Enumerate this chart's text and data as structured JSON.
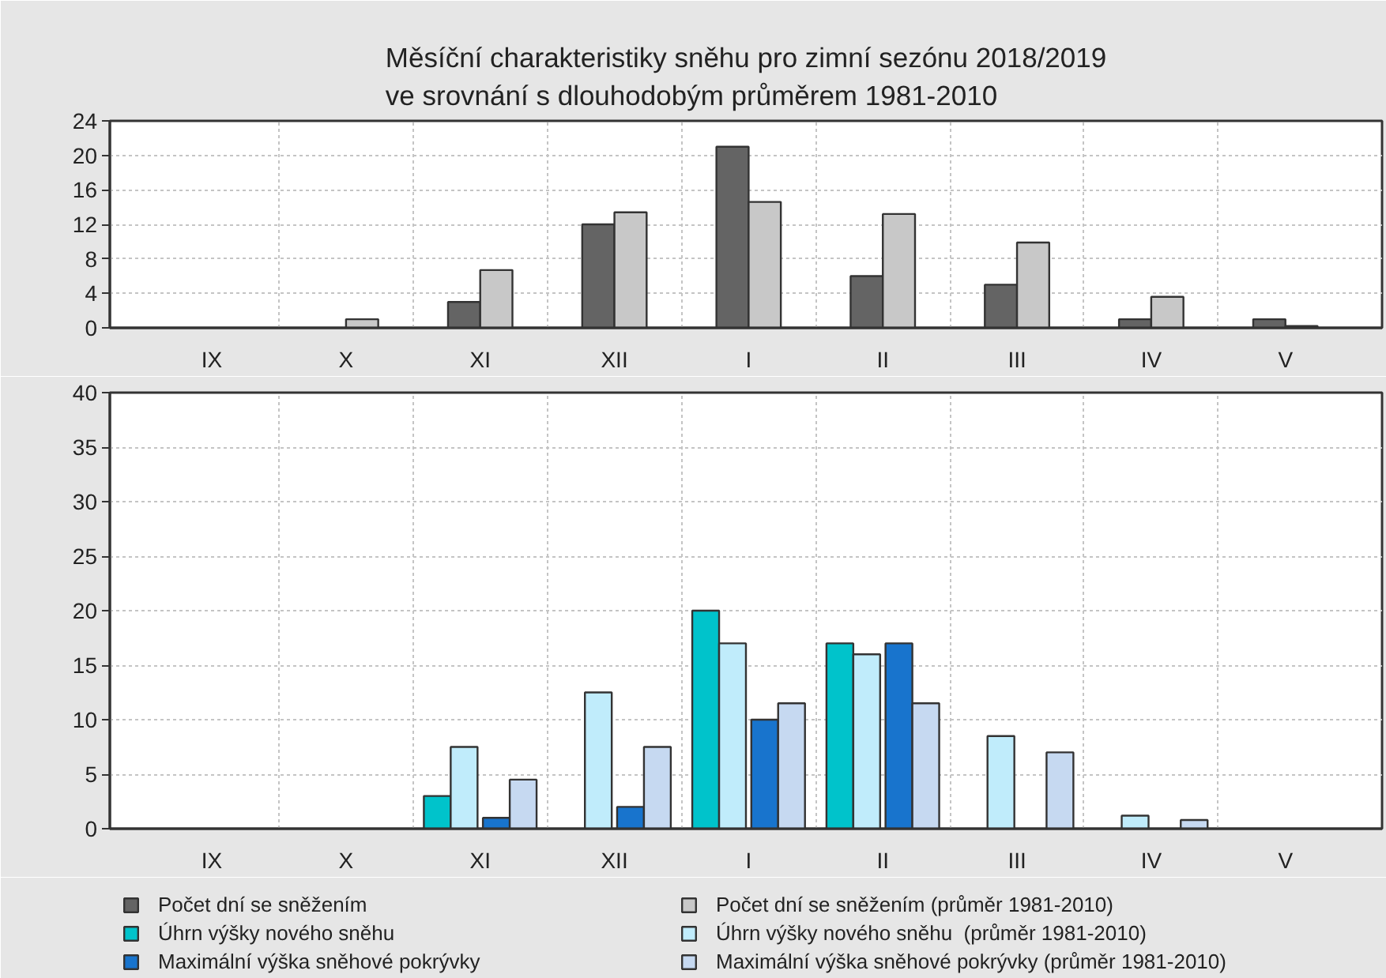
{
  "chart_data": [
    {
      "type": "bar",
      "title": "Měsíční charakteristiky sněhu pro zimní sezónu 2018/2019\nve srovnání s dlouhodobým průměrem 1981-2010",
      "categories": [
        "IX",
        "X",
        "XI",
        "XII",
        "I",
        "II",
        "III",
        "IV",
        "V"
      ],
      "series": [
        {
          "name": "Počet dní se sněžením",
          "color": "#646464",
          "values": [
            null,
            null,
            3,
            12,
            21,
            6,
            5,
            1,
            1
          ]
        },
        {
          "name": "Počet dní se sněžením (průměr 1981-2010)",
          "color": "#c8c8c8",
          "values": [
            null,
            1,
            6.7,
            13.4,
            14.6,
            13.2,
            9.9,
            3.6,
            0.2
          ]
        }
      ],
      "ylim": [
        0,
        24
      ],
      "yticks": [
        0,
        4,
        8,
        12,
        16,
        20,
        24
      ],
      "grid": true,
      "legend": "bottom"
    },
    {
      "type": "bar",
      "categories": [
        "IX",
        "X",
        "XI",
        "XII",
        "I",
        "II",
        "III",
        "IV",
        "V"
      ],
      "series": [
        {
          "name": "Úhrn výšky nového sněhu",
          "color": "#00c3cb",
          "values": [
            null,
            null,
            3,
            null,
            20,
            17,
            null,
            null,
            null
          ]
        },
        {
          "name": "Úhrn výšky nového sněhu  (průměr 1981-2010)",
          "color": "#c0ecfb",
          "values": [
            null,
            null,
            7.5,
            12.5,
            17,
            16,
            8.5,
            1.2,
            null
          ]
        },
        {
          "name": "Maximální výška sněhové pokrývky",
          "color": "#1874cd",
          "values": [
            null,
            null,
            1,
            2,
            10,
            17,
            null,
            null,
            null
          ]
        },
        {
          "name": "Maximální výška sněhové pokrývky (průměr 1981-2010)",
          "color": "#c6d9f1",
          "values": [
            null,
            null,
            4.5,
            7.5,
            11.5,
            11.5,
            7,
            0.8,
            null
          ]
        }
      ],
      "ylim": [
        0,
        40
      ],
      "yticks": [
        0,
        5,
        10,
        15,
        20,
        25,
        30,
        35,
        40
      ],
      "grid": true,
      "legend": "bottom"
    }
  ]
}
